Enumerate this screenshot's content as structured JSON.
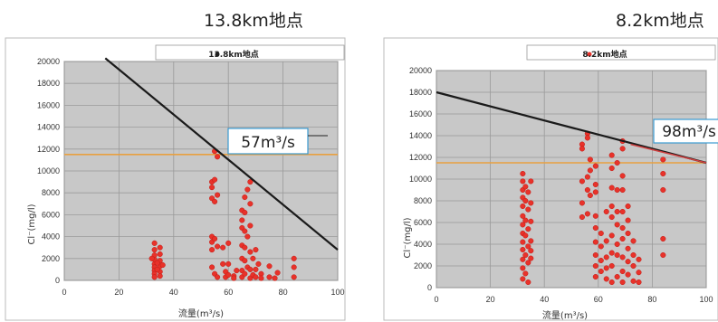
{
  "chart_data": [
    {
      "type": "scatter",
      "title": "13.8km地点",
      "legend": "13.8km地点",
      "xlabel": "流量(m³/s)",
      "ylabel": "Cl⁻(mg/l)",
      "xlim": [
        0,
        100
      ],
      "ylim": [
        0,
        20000
      ],
      "xticks": [
        "0",
        "20",
        "40",
        "60",
        "80",
        "100"
      ],
      "yticks": [
        "0",
        "2000",
        "4000",
        "6000",
        "8000",
        "10000",
        "12000",
        "14000",
        "16000",
        "18000",
        "20000"
      ],
      "threshold_y": 11500,
      "trend_line": [
        [
          15,
          20300
        ],
        [
          100,
          2800
        ]
      ],
      "annotation": "57m³/s",
      "colors": {
        "points": "#e8322a",
        "line": "#1a1a1a",
        "threshold": "#e8a040"
      },
      "points": [
        [
          33,
          3400
        ],
        [
          33,
          2800
        ],
        [
          33,
          2300
        ],
        [
          33,
          1900
        ],
        [
          33,
          1500
        ],
        [
          33,
          1200
        ],
        [
          33,
          900
        ],
        [
          33,
          600
        ],
        [
          33,
          300
        ],
        [
          35,
          3000
        ],
        [
          35,
          2400
        ],
        [
          35,
          1800
        ],
        [
          35,
          1300
        ],
        [
          35,
          800
        ],
        [
          35,
          400
        ],
        [
          34,
          1600
        ],
        [
          34,
          1000
        ],
        [
          32,
          2000
        ],
        [
          36,
          1400
        ],
        [
          54,
          9000
        ],
        [
          54,
          8500
        ],
        [
          54,
          7500
        ],
        [
          54,
          4000
        ],
        [
          54,
          3500
        ],
        [
          54,
          2800
        ],
        [
          54,
          1200
        ],
        [
          55,
          11800
        ],
        [
          55,
          9200
        ],
        [
          55,
          7200
        ],
        [
          55,
          3800
        ],
        [
          55,
          600
        ],
        [
          56,
          11300
        ],
        [
          56,
          7800
        ],
        [
          56,
          3100
        ],
        [
          56,
          300
        ],
        [
          58,
          3000
        ],
        [
          58,
          1500
        ],
        [
          59,
          800
        ],
        [
          59,
          300
        ],
        [
          60,
          3400
        ],
        [
          60,
          1500
        ],
        [
          60,
          500
        ],
        [
          62,
          400
        ],
        [
          62,
          200
        ],
        [
          63,
          900
        ],
        [
          65,
          6400
        ],
        [
          65,
          5500
        ],
        [
          65,
          4800
        ],
        [
          65,
          3200
        ],
        [
          65,
          2000
        ],
        [
          65,
          900
        ],
        [
          65,
          300
        ],
        [
          66,
          7600
        ],
        [
          66,
          6200
        ],
        [
          66,
          4500
        ],
        [
          66,
          3000
        ],
        [
          66,
          1800
        ],
        [
          66,
          600
        ],
        [
          67,
          8300
        ],
        [
          67,
          4000
        ],
        [
          67,
          1200
        ],
        [
          68,
          9000
        ],
        [
          68,
          7000
        ],
        [
          68,
          5000
        ],
        [
          68,
          2600
        ],
        [
          68,
          1000
        ],
        [
          68,
          200
        ],
        [
          69,
          2000
        ],
        [
          69,
          500
        ],
        [
          70,
          2800
        ],
        [
          70,
          1000
        ],
        [
          70,
          300
        ],
        [
          71,
          1500
        ],
        [
          72,
          600
        ],
        [
          72,
          200
        ],
        [
          75,
          1300
        ],
        [
          75,
          300
        ],
        [
          77,
          200
        ],
        [
          78,
          700
        ],
        [
          84,
          2000
        ],
        [
          84,
          1200
        ],
        [
          84,
          300
        ]
      ]
    },
    {
      "type": "scatter",
      "title": "8.2km地点",
      "legend": "8.2km地点",
      "xlabel": "流量(m³/s)",
      "ylabel": "Cl⁻(mg/l)",
      "xlim": [
        0,
        100
      ],
      "ylim": [
        0,
        20000
      ],
      "xticks": [
        "0",
        "20",
        "40",
        "60",
        "80",
        "100"
      ],
      "yticks": [
        "0",
        "2000",
        "4000",
        "6000",
        "8000",
        "10000",
        "12000",
        "14000",
        "16000",
        "18000",
        "20000"
      ],
      "threshold_y": 11500,
      "trend_line": [
        [
          0,
          18000
        ],
        [
          100,
          11500
        ]
      ],
      "annotation": "98m³/s",
      "colors": {
        "points": "#e8322a",
        "line": "#1a1a1a",
        "threshold": "#e8a040"
      },
      "points": [
        [
          32,
          10500
        ],
        [
          32,
          9800
        ],
        [
          32,
          9000
        ],
        [
          32,
          8300
        ],
        [
          32,
          7500
        ],
        [
          32,
          6600
        ],
        [
          32,
          5800
        ],
        [
          32,
          5000
        ],
        [
          32,
          4200
        ],
        [
          32,
          3500
        ],
        [
          32,
          2600
        ],
        [
          32,
          1800
        ],
        [
          32,
          800
        ],
        [
          33,
          9300
        ],
        [
          33,
          8000
        ],
        [
          33,
          6200
        ],
        [
          33,
          4800
        ],
        [
          33,
          3000
        ],
        [
          33,
          1300
        ],
        [
          34,
          8800
        ],
        [
          34,
          7200
        ],
        [
          34,
          5400
        ],
        [
          34,
          3800
        ],
        [
          34,
          2300
        ],
        [
          34,
          500
        ],
        [
          35,
          9800
        ],
        [
          35,
          7800
        ],
        [
          35,
          6100
        ],
        [
          35,
          4300
        ],
        [
          35,
          3400
        ],
        [
          35,
          2700
        ],
        [
          54,
          13200
        ],
        [
          54,
          12800
        ],
        [
          54,
          9800
        ],
        [
          54,
          7800
        ],
        [
          54,
          6500
        ],
        [
          56,
          14200
        ],
        [
          56,
          13800
        ],
        [
          56,
          10200
        ],
        [
          56,
          9000
        ],
        [
          56,
          6800
        ],
        [
          57,
          11800
        ],
        [
          57,
          10800
        ],
        [
          57,
          8500
        ],
        [
          59,
          11200
        ],
        [
          59,
          9500
        ],
        [
          59,
          8800
        ],
        [
          59,
          6600
        ],
        [
          59,
          5500
        ],
        [
          59,
          4200
        ],
        [
          59,
          3000
        ],
        [
          59,
          2000
        ],
        [
          59,
          1000
        ],
        [
          61,
          5000
        ],
        [
          61,
          3800
        ],
        [
          61,
          2500
        ],
        [
          61,
          1500
        ],
        [
          63,
          7000
        ],
        [
          63,
          4300
        ],
        [
          63,
          2800
        ],
        [
          63,
          1800
        ],
        [
          63,
          800
        ],
        [
          65,
          12200
        ],
        [
          65,
          11000
        ],
        [
          65,
          9200
        ],
        [
          65,
          7500
        ],
        [
          65,
          6500
        ],
        [
          65,
          4800
        ],
        [
          65,
          3200
        ],
        [
          65,
          2000
        ],
        [
          65,
          500
        ],
        [
          67,
          11500
        ],
        [
          67,
          9000
        ],
        [
          67,
          7000
        ],
        [
          67,
          5800
        ],
        [
          67,
          4000
        ],
        [
          67,
          3000
        ],
        [
          67,
          1000
        ],
        [
          69,
          13500
        ],
        [
          69,
          12800
        ],
        [
          69,
          10300
        ],
        [
          69,
          9000
        ],
        [
          69,
          7000
        ],
        [
          69,
          5500
        ],
        [
          69,
          4500
        ],
        [
          69,
          2800
        ],
        [
          69,
          1500
        ],
        [
          69,
          500
        ],
        [
          71,
          7500
        ],
        [
          71,
          6200
        ],
        [
          71,
          5000
        ],
        [
          71,
          3600
        ],
        [
          71,
          2400
        ],
        [
          71,
          1200
        ],
        [
          73,
          4300
        ],
        [
          73,
          3000
        ],
        [
          73,
          2000
        ],
        [
          73,
          600
        ],
        [
          75,
          2600
        ],
        [
          75,
          1400
        ],
        [
          75,
          500
        ],
        [
          84,
          11800
        ],
        [
          84,
          10500
        ],
        [
          84,
          9000
        ],
        [
          84,
          4500
        ],
        [
          84,
          3000
        ]
      ]
    }
  ]
}
